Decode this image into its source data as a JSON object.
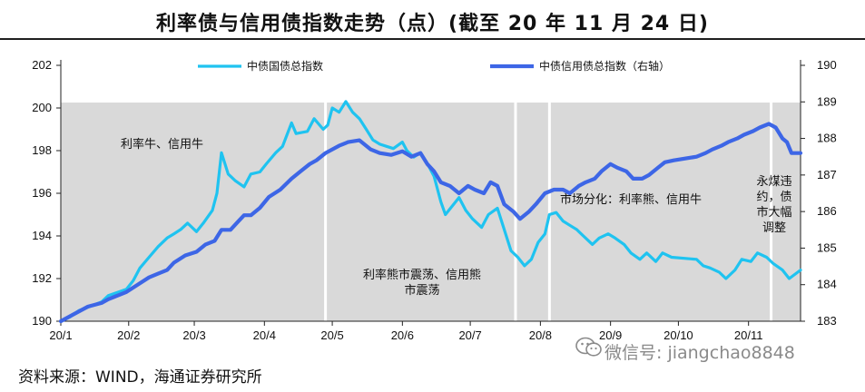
{
  "title": "利率债与信用债指数走势（点）(截至 20 年 11 月 24 日)",
  "source": "资料来源：WIND，海通证券研究所",
  "watermark": "微信号: jiangchao8848",
  "chart_data": {
    "type": "line",
    "x_ticks": [
      "20/1",
      "20/2",
      "20/3",
      "20/4",
      "20/5",
      "20/6",
      "20/7",
      "20/8",
      "20/9",
      "20/10",
      "20/11"
    ],
    "y_left": {
      "min": 190,
      "max": 202,
      "ticks": [
        190,
        192,
        194,
        196,
        198,
        200,
        202
      ]
    },
    "y_right": {
      "min": 183,
      "max": 190,
      "ticks": [
        183,
        184,
        185,
        186,
        187,
        188,
        189,
        190
      ]
    },
    "regimes": [
      {
        "from": "2020-01-02",
        "to": "2020-04-28",
        "label_lines": [
          "利率牛、信用牛"
        ]
      },
      {
        "from": "2020-04-28",
        "to": "2020-07-21",
        "label_lines": [
          "利率熊市震荡、信用熊",
          "市震荡"
        ]
      },
      {
        "from": "2020-07-21",
        "to": "2020-08-05",
        "label_lines": []
      },
      {
        "from": "2020-08-05",
        "to": "2020-11-11",
        "label_lines": [
          "市场分化：利率熊、信用牛"
        ]
      },
      {
        "from": "2020-11-11",
        "to": "2020-11-24",
        "label_lines": [
          "永煤违",
          "约，债",
          "市大幅",
          "调整"
        ]
      }
    ],
    "series": [
      {
        "name": "中债国债总指数",
        "axis": "left",
        "color": "#1fc3f0",
        "points": [
          [
            "2020-01-02",
            190.0
          ],
          [
            "2020-01-06",
            190.2
          ],
          [
            "2020-01-10",
            190.5
          ],
          [
            "2020-01-15",
            190.7
          ],
          [
            "2020-01-20",
            190.9
          ],
          [
            "2020-01-23",
            191.2
          ],
          [
            "2020-01-31",
            191.5
          ],
          [
            "2020-02-03",
            191.9
          ],
          [
            "2020-02-06",
            192.5
          ],
          [
            "2020-02-10",
            193.0
          ],
          [
            "2020-02-14",
            193.5
          ],
          [
            "2020-02-18",
            193.9
          ],
          [
            "2020-02-21",
            194.1
          ],
          [
            "2020-02-24",
            194.3
          ],
          [
            "2020-02-27",
            194.6
          ],
          [
            "2020-03-02",
            194.2
          ],
          [
            "2020-03-05",
            194.6
          ],
          [
            "2020-03-09",
            195.2
          ],
          [
            "2020-03-11",
            196.0
          ],
          [
            "2020-03-13",
            197.9
          ],
          [
            "2020-03-16",
            196.9
          ],
          [
            "2020-03-19",
            196.6
          ],
          [
            "2020-03-23",
            196.3
          ],
          [
            "2020-03-26",
            196.9
          ],
          [
            "2020-03-30",
            197.0
          ],
          [
            "2020-04-02",
            197.4
          ],
          [
            "2020-04-06",
            197.9
          ],
          [
            "2020-04-09",
            198.2
          ],
          [
            "2020-04-13",
            199.3
          ],
          [
            "2020-04-15",
            198.8
          ],
          [
            "2020-04-20",
            198.9
          ],
          [
            "2020-04-23",
            199.5
          ],
          [
            "2020-04-27",
            199.0
          ],
          [
            "2020-04-29",
            199.2
          ],
          [
            "2020-05-01",
            200.0
          ],
          [
            "2020-05-04",
            199.8
          ],
          [
            "2020-05-07",
            200.3
          ],
          [
            "2020-05-10",
            199.8
          ],
          [
            "2020-05-13",
            199.5
          ],
          [
            "2020-05-16",
            199.0
          ],
          [
            "2020-05-19",
            198.5
          ],
          [
            "2020-05-22",
            198.3
          ],
          [
            "2020-05-25",
            198.2
          ],
          [
            "2020-05-28",
            198.1
          ],
          [
            "2020-06-01",
            198.4
          ],
          [
            "2020-06-03",
            198.0
          ],
          [
            "2020-06-06",
            197.7
          ],
          [
            "2020-06-09",
            197.9
          ],
          [
            "2020-06-12",
            197.4
          ],
          [
            "2020-06-15",
            196.8
          ],
          [
            "2020-06-18",
            195.6
          ],
          [
            "2020-06-20",
            195.0
          ],
          [
            "2020-06-23",
            195.4
          ],
          [
            "2020-06-26",
            195.8
          ],
          [
            "2020-06-29",
            195.2
          ],
          [
            "2020-07-02",
            194.8
          ],
          [
            "2020-07-06",
            194.4
          ],
          [
            "2020-07-09",
            195.0
          ],
          [
            "2020-07-13",
            195.3
          ],
          [
            "2020-07-16",
            194.3
          ],
          [
            "2020-07-19",
            193.3
          ],
          [
            "2020-07-22",
            193.0
          ],
          [
            "2020-07-25",
            192.6
          ],
          [
            "2020-07-28",
            192.9
          ],
          [
            "2020-07-31",
            193.7
          ],
          [
            "2020-08-03",
            194.1
          ],
          [
            "2020-08-05",
            195.0
          ],
          [
            "2020-08-08",
            195.1
          ],
          [
            "2020-08-11",
            194.7
          ],
          [
            "2020-08-14",
            194.5
          ],
          [
            "2020-08-17",
            194.3
          ],
          [
            "2020-08-20",
            194.0
          ],
          [
            "2020-08-24",
            193.6
          ],
          [
            "2020-08-27",
            193.9
          ],
          [
            "2020-08-31",
            194.1
          ],
          [
            "2020-09-03",
            193.9
          ],
          [
            "2020-09-07",
            193.6
          ],
          [
            "2020-09-10",
            193.2
          ],
          [
            "2020-09-14",
            192.9
          ],
          [
            "2020-09-17",
            193.2
          ],
          [
            "2020-09-21",
            192.8
          ],
          [
            "2020-09-24",
            193.2
          ],
          [
            "2020-09-28",
            193.0
          ],
          [
            "2020-10-09",
            192.9
          ],
          [
            "2020-10-12",
            192.6
          ],
          [
            "2020-10-15",
            192.5
          ],
          [
            "2020-10-19",
            192.3
          ],
          [
            "2020-10-22",
            192.0
          ],
          [
            "2020-10-26",
            192.4
          ],
          [
            "2020-10-29",
            192.9
          ],
          [
            "2020-11-02",
            192.8
          ],
          [
            "2020-11-05",
            193.2
          ],
          [
            "2020-11-09",
            193.0
          ],
          [
            "2020-11-12",
            192.7
          ],
          [
            "2020-11-16",
            192.4
          ],
          [
            "2020-11-19",
            192.0
          ],
          [
            "2020-11-24",
            192.4
          ]
        ]
      },
      {
        "name": "中债信用债总指数（右轴）",
        "axis": "right",
        "color": "#3d66e6",
        "points": [
          [
            "2020-01-02",
            183.0
          ],
          [
            "2020-01-08",
            183.2
          ],
          [
            "2020-01-14",
            183.4
          ],
          [
            "2020-01-20",
            183.5
          ],
          [
            "2020-01-23",
            183.6
          ],
          [
            "2020-01-31",
            183.8
          ],
          [
            "2020-02-05",
            184.0
          ],
          [
            "2020-02-10",
            184.2
          ],
          [
            "2020-02-14",
            184.3
          ],
          [
            "2020-02-18",
            184.4
          ],
          [
            "2020-02-21",
            184.6
          ],
          [
            "2020-02-26",
            184.8
          ],
          [
            "2020-03-02",
            184.9
          ],
          [
            "2020-03-06",
            185.1
          ],
          [
            "2020-03-10",
            185.2
          ],
          [
            "2020-03-13",
            185.5
          ],
          [
            "2020-03-17",
            185.5
          ],
          [
            "2020-03-20",
            185.7
          ],
          [
            "2020-03-23",
            185.9
          ],
          [
            "2020-03-26",
            185.9
          ],
          [
            "2020-03-30",
            186.1
          ],
          [
            "2020-04-03",
            186.4
          ],
          [
            "2020-04-08",
            186.6
          ],
          [
            "2020-04-13",
            186.9
          ],
          [
            "2020-04-17",
            187.1
          ],
          [
            "2020-04-21",
            187.3
          ],
          [
            "2020-04-24",
            187.4
          ],
          [
            "2020-04-28",
            187.6
          ],
          [
            "2020-05-04",
            187.8
          ],
          [
            "2020-05-08",
            187.9
          ],
          [
            "2020-05-13",
            187.95
          ],
          [
            "2020-05-18",
            187.7
          ],
          [
            "2020-05-22",
            187.6
          ],
          [
            "2020-05-27",
            187.55
          ],
          [
            "2020-06-01",
            187.65
          ],
          [
            "2020-06-05",
            187.5
          ],
          [
            "2020-06-09",
            187.6
          ],
          [
            "2020-06-12",
            187.3
          ],
          [
            "2020-06-15",
            187.1
          ],
          [
            "2020-06-18",
            186.8
          ],
          [
            "2020-06-22",
            186.7
          ],
          [
            "2020-06-26",
            186.5
          ],
          [
            "2020-06-30",
            186.7
          ],
          [
            "2020-07-03",
            186.6
          ],
          [
            "2020-07-07",
            186.5
          ],
          [
            "2020-07-10",
            186.8
          ],
          [
            "2020-07-13",
            186.7
          ],
          [
            "2020-07-16",
            186.2
          ],
          [
            "2020-07-20",
            186.0
          ],
          [
            "2020-07-23",
            185.8
          ],
          [
            "2020-07-27",
            186.0
          ],
          [
            "2020-07-30",
            186.2
          ],
          [
            "2020-08-03",
            186.5
          ],
          [
            "2020-08-07",
            186.6
          ],
          [
            "2020-08-11",
            186.6
          ],
          [
            "2020-08-14",
            186.5
          ],
          [
            "2020-08-18",
            186.7
          ],
          [
            "2020-08-21",
            186.8
          ],
          [
            "2020-08-25",
            186.9
          ],
          [
            "2020-08-28",
            187.1
          ],
          [
            "2020-09-01",
            187.3
          ],
          [
            "2020-09-04",
            187.2
          ],
          [
            "2020-09-08",
            187.1
          ],
          [
            "2020-09-11",
            186.9
          ],
          [
            "2020-09-15",
            186.9
          ],
          [
            "2020-09-18",
            187.0
          ],
          [
            "2020-09-22",
            187.2
          ],
          [
            "2020-09-25",
            187.35
          ],
          [
            "2020-09-29",
            187.4
          ],
          [
            "2020-10-09",
            187.5
          ],
          [
            "2020-10-13",
            187.6
          ],
          [
            "2020-10-16",
            187.7
          ],
          [
            "2020-10-20",
            187.8
          ],
          [
            "2020-10-23",
            187.9
          ],
          [
            "2020-10-27",
            188.0
          ],
          [
            "2020-10-30",
            188.1
          ],
          [
            "2020-11-03",
            188.2
          ],
          [
            "2020-11-06",
            188.3
          ],
          [
            "2020-11-10",
            188.4
          ],
          [
            "2020-11-13",
            188.3
          ],
          [
            "2020-11-16",
            188.0
          ],
          [
            "2020-11-18",
            187.9
          ],
          [
            "2020-11-20",
            187.6
          ],
          [
            "2020-11-24",
            187.6
          ]
        ]
      }
    ]
  }
}
